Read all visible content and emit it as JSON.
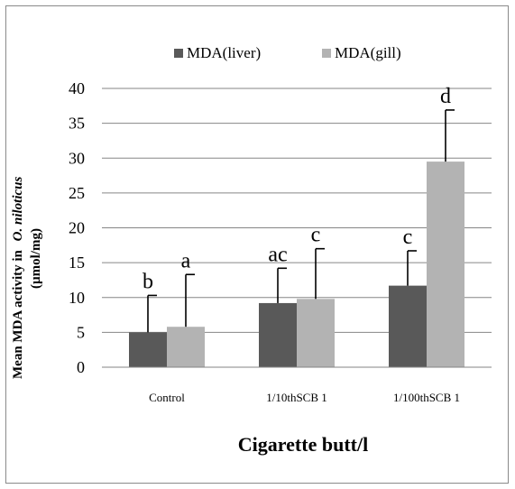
{
  "chart_data": {
    "type": "bar",
    "categories": [
      "Control",
      "1/10thSCB 1",
      "1/100thSCB 1"
    ],
    "series": [
      {
        "name": "MDA(liver)",
        "color": "#595959",
        "values": [
          5.0,
          9.2,
          11.7
        ],
        "errors": [
          5.3,
          5.0,
          5.0
        ],
        "letters": [
          "b",
          "ac",
          "c"
        ]
      },
      {
        "name": "MDA(gill)",
        "color": "#b3b3b3",
        "values": [
          5.8,
          9.8,
          29.5
        ],
        "errors": [
          7.5,
          7.2,
          7.4
        ],
        "letters": [
          "a",
          "c",
          "d"
        ]
      }
    ],
    "ylim": [
      0,
      40
    ],
    "yticks": [
      0,
      5,
      10,
      15,
      20,
      25,
      30,
      35,
      40
    ],
    "ylabel_line1": "Mean MDA activity in",
    "ylabel_species": "O. niloticus",
    "ylabel_line2": "(µmol/mg)",
    "xlabel": "Cigarette butt/l",
    "grid": true,
    "legend_position": "top"
  }
}
